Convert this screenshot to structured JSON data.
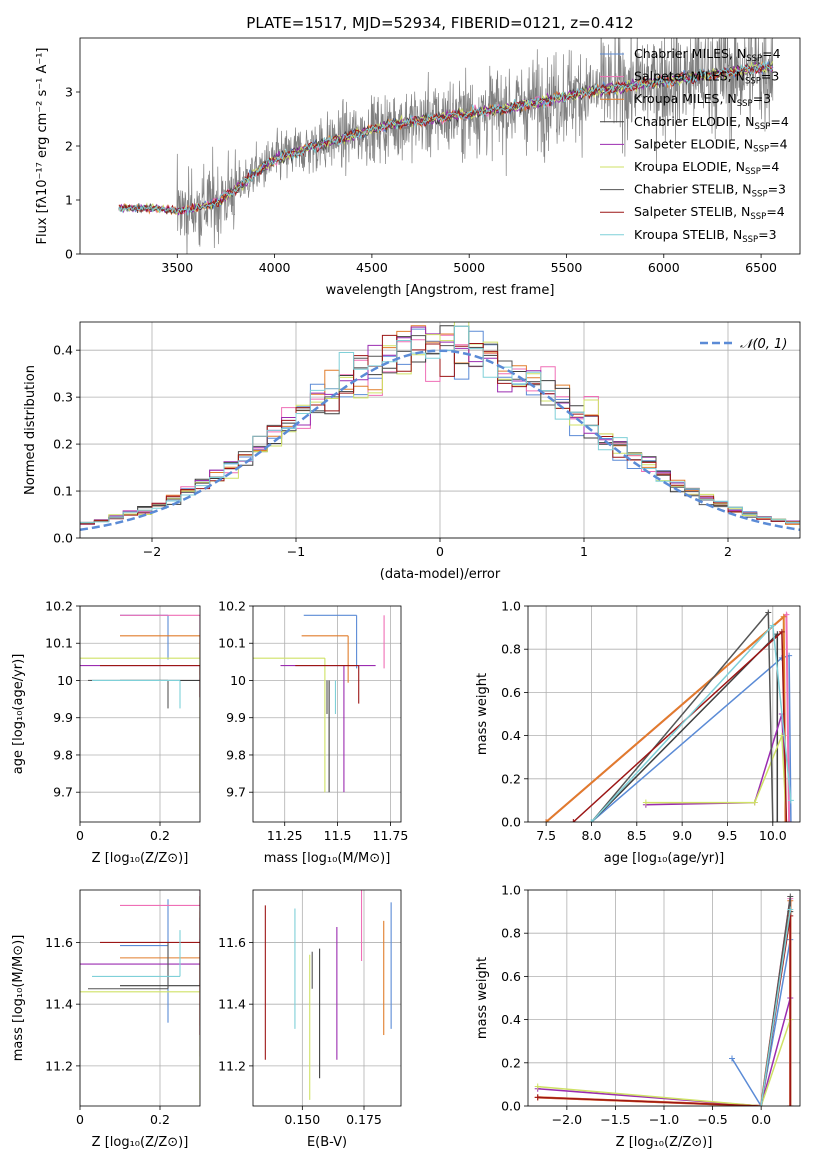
{
  "figure": {
    "title": "PLATE=1517, MJD=52934, FIBERID=0121, z=0.412"
  },
  "colors": {
    "Chabrier MILES": "#5b8bd6",
    "Salpeter MILES": "#ef6fb6",
    "Kroupa MILES": "#e07d2c",
    "Chabrier ELODIE": "#3f3f3f",
    "Salpeter ELODIE": "#9b2cb0",
    "Kroupa ELODIE": "#cfe266",
    "Chabrier STELIB": "#555555",
    "Salpeter STELIB": "#9c1616",
    "Kroupa STELIB": "#7fd0d8",
    "gauss": "#5b8bd6"
  },
  "chart_data": [
    {
      "type": "line",
      "panel": "spectrum",
      "title": "PLATE=1517, MJD=52934, FIBERID=0121, z=0.412",
      "xlabel": "wavelength [Angstrom, rest frame]",
      "ylabel": "Flux [fλ10⁻¹⁷ erg cm⁻² s⁻¹ A⁻¹]",
      "xlim": [
        3000,
        6700
      ],
      "ylim": [
        0,
        4
      ],
      "xticks": [
        3500,
        4000,
        4500,
        5000,
        5500,
        6000,
        6500
      ],
      "yticks": [
        0,
        1,
        2,
        3
      ],
      "grid": false,
      "legend_position": "top-right",
      "legend": [
        {
          "label": "Chabrier MILES, N",
          "sub": "SSP",
          "suffix": "=4"
        },
        {
          "label": "Salpeter MILES, N",
          "sub": "SSP",
          "suffix": "=3"
        },
        {
          "label": "Kroupa MILES, N",
          "sub": "SSP",
          "suffix": "=3"
        },
        {
          "label": "Chabrier ELODIE, N",
          "sub": "SSP",
          "suffix": "=4"
        },
        {
          "label": "Salpeter ELODIE, N",
          "sub": "SSP",
          "suffix": "=4"
        },
        {
          "label": "Kroupa ELODIE, N",
          "sub": "SSP",
          "suffix": "=4"
        },
        {
          "label": "Chabrier STELIB, N",
          "sub": "SSP",
          "suffix": "=3"
        },
        {
          "label": "Salpeter STELIB, N",
          "sub": "SSP",
          "suffix": "=4"
        },
        {
          "label": "Kroupa STELIB, N",
          "sub": "SSP",
          "suffix": "=3"
        }
      ],
      "model_trend": {
        "x": [
          3200,
          3400,
          3500,
          3600,
          3700,
          3800,
          3900,
          4000,
          4200,
          4400,
          4600,
          4800,
          5000,
          5200,
          5400,
          5600,
          5800,
          6000,
          6200,
          6400,
          6500
        ],
        "y": [
          0.85,
          0.85,
          0.8,
          0.85,
          0.95,
          1.2,
          1.5,
          1.75,
          2.0,
          2.2,
          2.4,
          2.5,
          2.6,
          2.7,
          2.85,
          3.0,
          3.1,
          3.2,
          3.3,
          3.4,
          3.45
        ]
      },
      "data_noise_wavelength_start": 3500
    },
    {
      "type": "line",
      "panel": "residuals",
      "xlabel": "(data-model)/error",
      "ylabel": "Normed distribution",
      "xlim": [
        -2.5,
        2.5
      ],
      "ylim": [
        0,
        0.46
      ],
      "xticks": [
        -2,
        -1,
        0,
        1,
        2
      ],
      "yticks": [
        0.0,
        0.1,
        0.2,
        0.3,
        0.4
      ],
      "grid": true,
      "legend_position": "top-right",
      "legend_label": "𝒩(0, 1)",
      "bin_width": 0.1
    },
    {
      "type": "scatter",
      "panel": "Z-age",
      "xlabel": "Z [log₁₀(Z/Z⊙)]",
      "ylabel": "age  [log₁₀(age/yr)]",
      "xlim": [
        0.0,
        0.3
      ],
      "ylim": [
        9.62,
        10.2
      ],
      "xticks": [
        0.0,
        0.2
      ],
      "yticks": [
        9.7,
        9.8,
        9.9,
        10.0,
        10.1,
        10.2
      ],
      "grid": true
    },
    {
      "type": "scatter",
      "panel": "mass-age",
      "xlabel": "mass [log₁₀(M/M⊙)]",
      "xlim": [
        11.1,
        11.8
      ],
      "ylim": [
        9.62,
        10.2
      ],
      "xticks": [
        11.25,
        11.5,
        11.75
      ],
      "yticks": [
        9.7,
        9.8,
        9.9,
        10.0,
        10.1,
        10.2
      ],
      "grid": true
    },
    {
      "type": "line",
      "panel": "age-weight",
      "xlabel": "age  [log₁₀(age/yr)]",
      "ylabel": "mass weight",
      "xlim": [
        7.3,
        10.3
      ],
      "ylim": [
        0,
        1.0
      ],
      "xticks": [
        7.5,
        8.0,
        8.5,
        9.0,
        9.5,
        10.0
      ],
      "yticks": [
        0.0,
        0.2,
        0.4,
        0.6,
        0.8,
        1.0
      ],
      "grid": true
    },
    {
      "type": "scatter",
      "panel": "Z-mass",
      "xlabel": "Z [log₁₀(Z/Z⊙)]",
      "ylabel": "mass [log₁₀(M/M⊙)]",
      "xlim": [
        0.0,
        0.3
      ],
      "ylim": [
        11.07,
        11.77
      ],
      "xticks": [
        0.0,
        0.2
      ],
      "yticks": [
        11.2,
        11.4,
        11.6
      ],
      "grid": true
    },
    {
      "type": "scatter",
      "panel": "ebv-mass",
      "xlabel": "E(B-V)",
      "xlim": [
        0.13,
        0.19
      ],
      "ylim": [
        11.07,
        11.77
      ],
      "xticks": [
        0.15,
        0.175
      ],
      "yticks": [
        11.2,
        11.4,
        11.6
      ],
      "grid": true
    },
    {
      "type": "line",
      "panel": "Z-weight",
      "xlabel": "Z [log₁₀(Z/Z⊙)]",
      "ylabel": "mass weight",
      "xlim": [
        -2.4,
        0.4
      ],
      "ylim": [
        0,
        1.0
      ],
      "xticks": [
        -2.0,
        -1.5,
        -1.0,
        -0.5,
        0.0
      ],
      "yticks": [
        0.0,
        0.2,
        0.4,
        0.6,
        0.8,
        1.0
      ],
      "grid": true
    }
  ],
  "models": [
    {
      "key": "Chabrier MILES",
      "Z": 0.22,
      "Zerr": [
        0.12,
        0.0
      ],
      "age": 10.175,
      "ageerr": [
        0.18,
        0.0
      ],
      "mass": 11.59,
      "masserr": [
        0.25,
        0.0
      ],
      "ebv": 0.186,
      "ebverr": [
        0.27,
        0.02
      ],
      "age_w": {
        "age": [
          8.0,
          10.1,
          10.18,
          10.2
        ],
        "w": [
          0.0,
          0.76,
          0.77,
          0.0
        ]
      },
      "Z_w": {
        "Z": [
          -0.3,
          0.0,
          0.3,
          0.3
        ],
        "w": [
          0.22,
          0.0,
          0.77,
          0.0
        ]
      }
    },
    {
      "key": "Salpeter MILES",
      "Z": 0.3,
      "Zerr": [
        0.2,
        0.0
      ],
      "age": 10.175,
      "ageerr": [
        0.0,
        0.0
      ],
      "mass": 11.72,
      "masserr": [
        0.0,
        0.0
      ],
      "ebv": 0.174,
      "ebverr": [
        0.18,
        0.0
      ],
      "age_w": {
        "age": [
          7.5,
          10.15,
          10.18
        ],
        "w": [
          0.0,
          0.96,
          0.0
        ]
      },
      "Z_w": {
        "Z": [
          -2.3,
          0.0,
          0.3,
          0.3
        ],
        "w": [
          0.04,
          0.0,
          0.96,
          0.0
        ]
      }
    },
    {
      "key": "Kroupa MILES",
      "Z": 0.3,
      "Zerr": [
        0.2,
        0.0
      ],
      "age": 10.12,
      "ageerr": [
        0.0,
        0.0
      ],
      "mass": 11.55,
      "masserr": [
        0.22,
        0.0
      ],
      "ebv": 0.183,
      "ebverr": [
        0.25,
        0.0
      ],
      "age_w": {
        "age": [
          7.5,
          10.12,
          10.14
        ],
        "w": [
          0.0,
          0.95,
          0.0
        ]
      },
      "Z_w": {
        "Z": [
          -2.3,
          0.0,
          0.3,
          0.3
        ],
        "w": [
          0.04,
          0.0,
          0.95,
          0.0
        ]
      }
    },
    {
      "key": "Chabrier ELODIE",
      "Z": 0.3,
      "Zerr": [
        0.2,
        0.0
      ],
      "age": 10.0,
      "ageerr": [
        0.0,
        0.0
      ],
      "mass": 11.46,
      "masserr": [
        0.0,
        0.0
      ],
      "ebv": 0.157,
      "ebverr": [
        0.3,
        0.0
      ],
      "age_w": {
        "age": [
          8.0,
          10.05,
          10.05
        ],
        "w": [
          0.0,
          0.87,
          0.0
        ]
      },
      "Z_w": {
        "Z": [
          0.0,
          0.3,
          0.3
        ],
        "w": [
          0.0,
          0.9,
          0.0
        ]
      }
    },
    {
      "key": "Salpeter ELODIE",
      "Z": 0.3,
      "Zerr": [
        0.3,
        0.0
      ],
      "age": 10.04,
      "ageerr": [
        0.0,
        0.0
      ],
      "mass": 11.53,
      "masserr": [
        0.3,
        0.15
      ],
      "ebv": 0.164,
      "ebverr": [
        0.31,
        0.0
      ],
      "age_w": {
        "age": [
          8.6,
          9.8,
          10.1,
          10.15
        ],
        "w": [
          0.08,
          0.09,
          0.5,
          0.0
        ]
      },
      "Z_w": {
        "Z": [
          -2.3,
          0.0,
          0.3,
          0.3
        ],
        "w": [
          0.08,
          0.0,
          0.5,
          0.0
        ]
      }
    },
    {
      "key": "Kroupa ELODIE",
      "Z": 0.3,
      "Zerr": [
        0.3,
        0.0
      ],
      "age": 10.06,
      "ageerr": [
        0.0,
        0.0
      ],
      "mass": 11.44,
      "masserr": [
        0.35,
        0.0
      ],
      "ebv": 0.153,
      "ebverr": [
        0.35,
        0.0
      ],
      "age_w": {
        "age": [
          8.6,
          9.8,
          10.1,
          10.15
        ],
        "w": [
          0.09,
          0.09,
          0.4,
          0.0
        ]
      },
      "Z_w": {
        "Z": [
          -2.3,
          0.0,
          0.3,
          0.3
        ],
        "w": [
          0.09,
          0.0,
          0.4,
          0.0
        ]
      }
    },
    {
      "key": "Chabrier STELIB",
      "Z": 0.22,
      "Zerr": [
        0.2,
        0.0
      ],
      "age": 10.0,
      "ageerr": [
        0.0,
        0.0
      ],
      "mass": 11.45,
      "masserr": [
        0.0,
        0.0
      ],
      "ebv": 0.154,
      "ebverr": [
        0.0,
        0.0
      ],
      "age_w": {
        "age": [
          8.0,
          9.95,
          10.0
        ],
        "w": [
          0.0,
          0.97,
          0.0
        ]
      },
      "Z_w": {
        "Z": [
          0.0,
          0.3,
          0.3
        ],
        "w": [
          0.0,
          0.97,
          0.0
        ]
      }
    },
    {
      "key": "Salpeter STELIB",
      "Z": 0.3,
      "Zerr": [
        0.25,
        0.0
      ],
      "age": 10.04,
      "ageerr": [
        0.0,
        0.0
      ],
      "mass": 11.6,
      "masserr": [
        0.3,
        0.0
      ],
      "ebv": 0.135,
      "ebverr": [
        0.38,
        0.0
      ],
      "age_w": {
        "age": [
          7.8,
          10.1,
          10.15
        ],
        "w": [
          0.0,
          0.88,
          0.0
        ]
      },
      "Z_w": {
        "Z": [
          -2.3,
          0.0,
          0.3,
          0.3
        ],
        "w": [
          0.04,
          0.0,
          0.88,
          0.0
        ]
      }
    },
    {
      "key": "Kroupa STELIB",
      "Z": 0.25,
      "Zerr": [
        0.22,
        0.0
      ],
      "age": 10.0,
      "ageerr": [
        0.0,
        0.0
      ],
      "mass": 11.49,
      "masserr": [
        0.0,
        0.0
      ],
      "ebv": 0.147,
      "ebverr": [
        0.17,
        0.1
      ],
      "age_w": {
        "age": [
          8.0,
          10.0,
          10.2
        ],
        "w": [
          0.0,
          0.91,
          0.1
        ]
      },
      "Z_w": {
        "Z": [
          0.0,
          0.3
        ],
        "w": [
          0.0,
          0.91
        ]
      }
    }
  ]
}
